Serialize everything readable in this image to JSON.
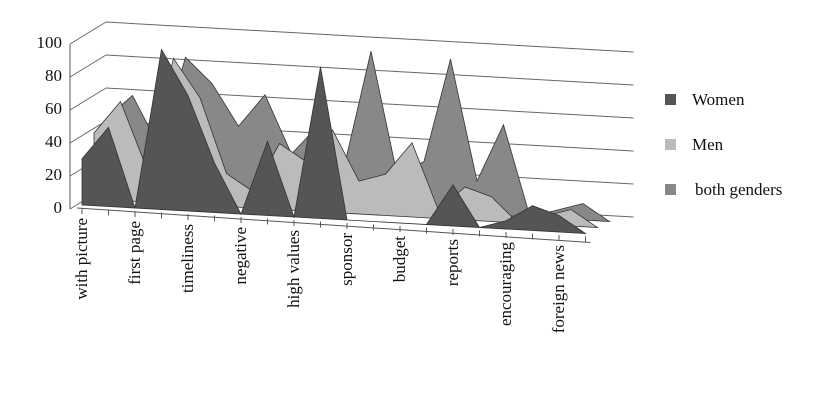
{
  "chart_data": {
    "type": "area3d",
    "categories": [
      "with picture",
      null,
      "first page",
      null,
      "timeliness",
      null,
      "negative",
      null,
      "high values",
      null,
      "sponsor",
      null,
      "budget",
      null,
      "reports",
      null,
      "encouraging",
      null,
      "foreign news",
      null
    ],
    "series": [
      {
        "name": "Women",
        "color": "#555555",
        "values": [
          28,
          48,
          0,
          97,
          70,
          30,
          0,
          45,
          0,
          92,
          0,
          0,
          0,
          0,
          25,
          0,
          5,
          15,
          10,
          0
        ]
      },
      {
        "name": "Men",
        "color": "#bbbbbb",
        "values": [
          40,
          60,
          20,
          88,
          65,
          20,
          10,
          40,
          30,
          50,
          20,
          25,
          45,
          5,
          20,
          15,
          0,
          5,
          10,
          0
        ]
      },
      {
        "name": "both genders",
        "color": "#888888",
        "values": [
          45,
          60,
          30,
          85,
          70,
          45,
          65,
          30,
          48,
          25,
          95,
          20,
          30,
          93,
          20,
          55,
          0,
          5,
          10,
          0
        ]
      }
    ],
    "ylim": [
      0,
      100
    ],
    "yticks": [
      0,
      20,
      40,
      60,
      80,
      100
    ],
    "grid": true
  }
}
